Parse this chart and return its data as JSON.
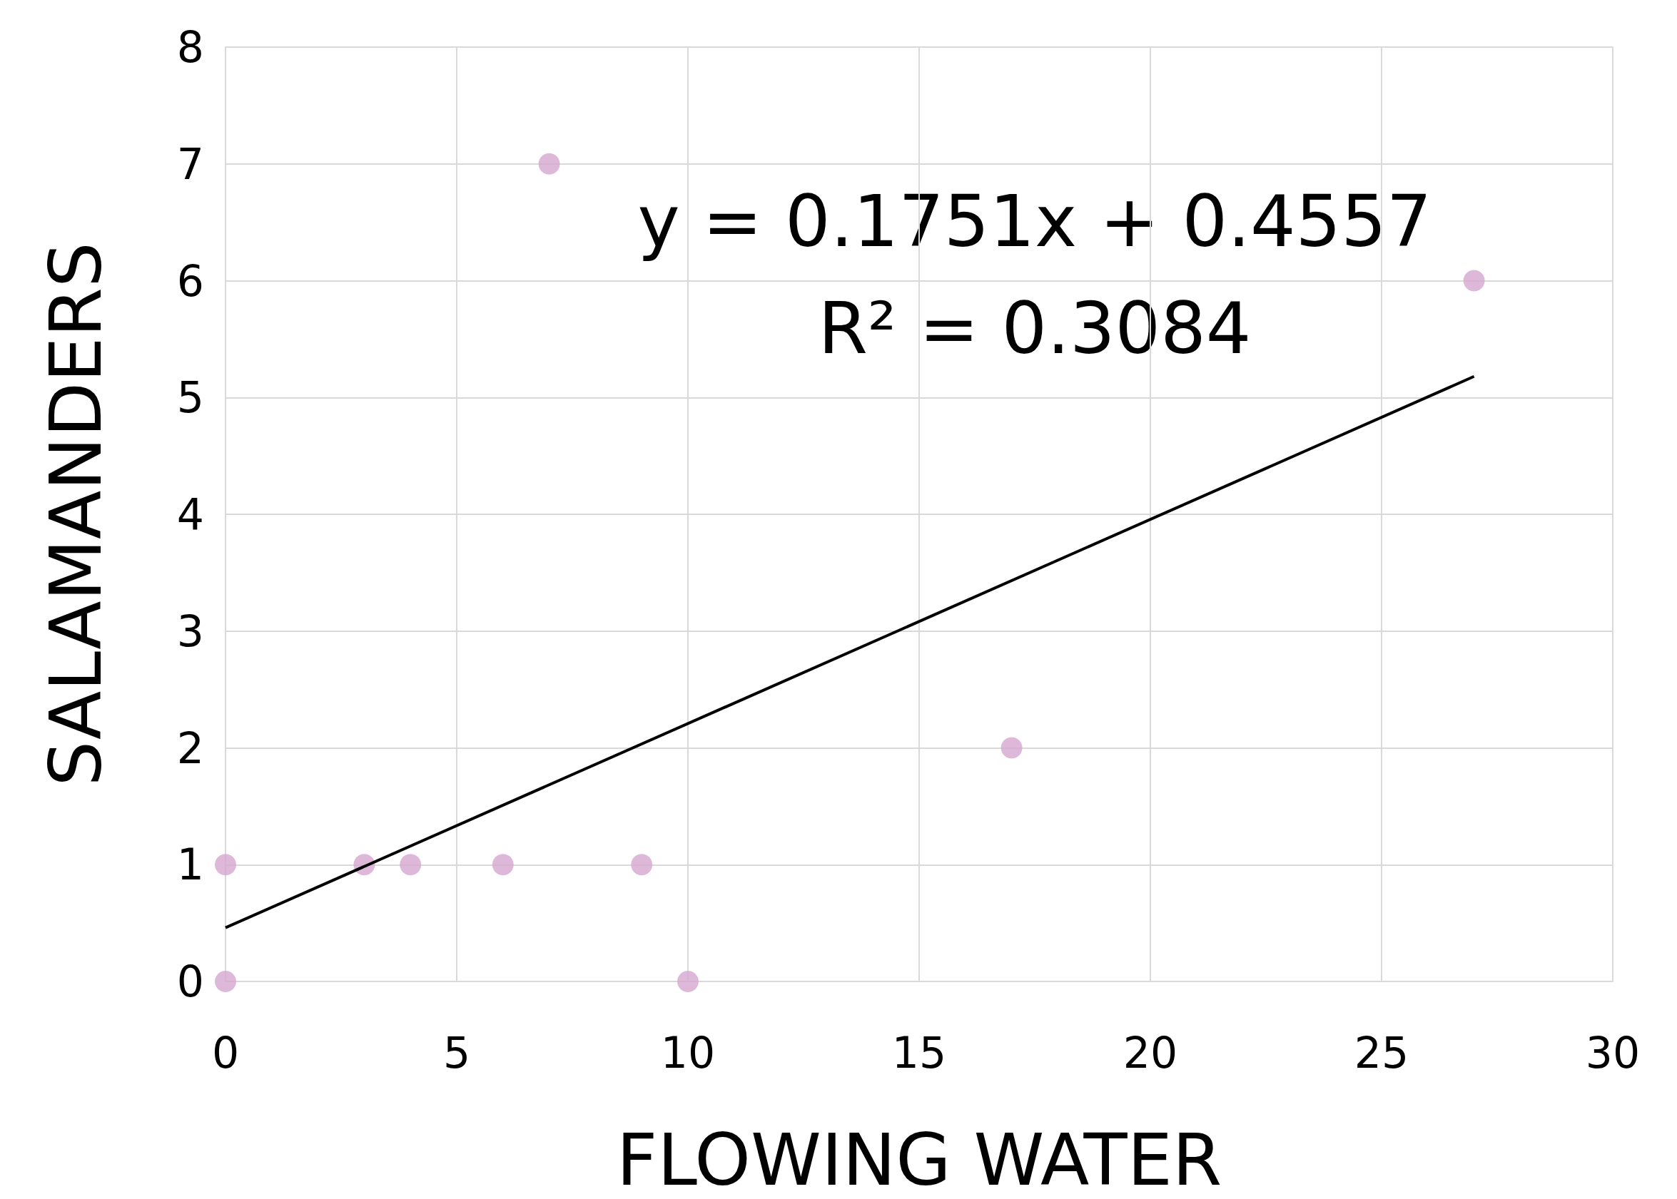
{
  "chart_data": {
    "type": "scatter",
    "xlabel": "FLOWING WATER",
    "ylabel": "SALAMANDERS",
    "xlim": [
      0,
      30
    ],
    "xticks": [
      0,
      5,
      10,
      15,
      20,
      25,
      30
    ],
    "ylim": [
      0,
      8
    ],
    "yticks": [
      0,
      1,
      2,
      3,
      4,
      5,
      6,
      7,
      8
    ],
    "grid": true,
    "series": [
      {
        "marker": "circle",
        "color": "#d5a6d0",
        "x": [
          0,
          0,
          3,
          4,
          6,
          7,
          9,
          10,
          17,
          27
        ],
        "values": [
          1,
          0,
          1,
          1,
          1,
          7,
          1,
          0,
          2,
          6
        ]
      },
      {
        "type": "line",
        "marker": "none",
        "color": "#000000",
        "x": [
          0,
          27
        ],
        "values": [
          0.46,
          5.18
        ]
      }
    ],
    "annotations": [
      "y = 0.1751x + 0.4557",
      "R² = 0.3084"
    ]
  }
}
